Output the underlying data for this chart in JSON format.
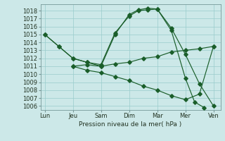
{
  "background_color": "#cce8e8",
  "grid_color": "#99cccc",
  "line_color": "#1a5e2a",
  "xlabel": "Pression niveau de la mer( hPa )",
  "ylim": [
    1005.5,
    1018.8
  ],
  "yticks": [
    1006,
    1007,
    1008,
    1009,
    1010,
    1011,
    1012,
    1013,
    1014,
    1015,
    1016,
    1017,
    1018
  ],
  "x_labels": [
    "Lun",
    "Jeu",
    "Sam",
    "Dim",
    "Mar",
    "Mer",
    "Ven"
  ],
  "x_positions": [
    0,
    1,
    2,
    3,
    4,
    5,
    6
  ],
  "xlim": [
    -0.15,
    6.25
  ],
  "lines": [
    {
      "x": [
        0,
        0.5,
        1,
        1.5,
        2,
        2.5,
        3,
        3.33,
        3.67,
        4,
        4.5,
        5,
        5.5,
        6
      ],
      "y": [
        1015,
        1013.5,
        1012,
        1011.5,
        1011,
        1015,
        1017.5,
        1018.1,
        1018.3,
        1018.2,
        1015.8,
        1012.5,
        1008.8,
        1006.0
      ]
    },
    {
      "x": [
        0,
        0.5,
        1,
        1.5,
        2,
        2.5,
        3,
        3.33,
        3.67,
        4,
        4.5,
        5,
        5.33,
        5.67
      ],
      "y": [
        1015,
        1013.5,
        1012,
        1011.5,
        1011.2,
        1015.2,
        1017.3,
        1018.0,
        1018.1,
        1018.2,
        1015.5,
        1009.5,
        1006.5,
        1005.8
      ]
    },
    {
      "x": [
        1,
        1.5,
        2,
        2.5,
        3,
        3.5,
        4,
        4.5,
        5,
        5.5,
        6
      ],
      "y": [
        1011,
        1011.2,
        1011,
        1011.3,
        1011.5,
        1012.0,
        1012.2,
        1012.8,
        1013.0,
        1013.2,
        1013.5
      ]
    },
    {
      "x": [
        1,
        1.5,
        2,
        2.5,
        3,
        3.5,
        4,
        4.5,
        5,
        5.5,
        6
      ],
      "y": [
        1011,
        1010.5,
        1010.2,
        1009.7,
        1009.2,
        1008.5,
        1008.0,
        1007.3,
        1006.8,
        1007.5,
        1013.5
      ]
    }
  ]
}
